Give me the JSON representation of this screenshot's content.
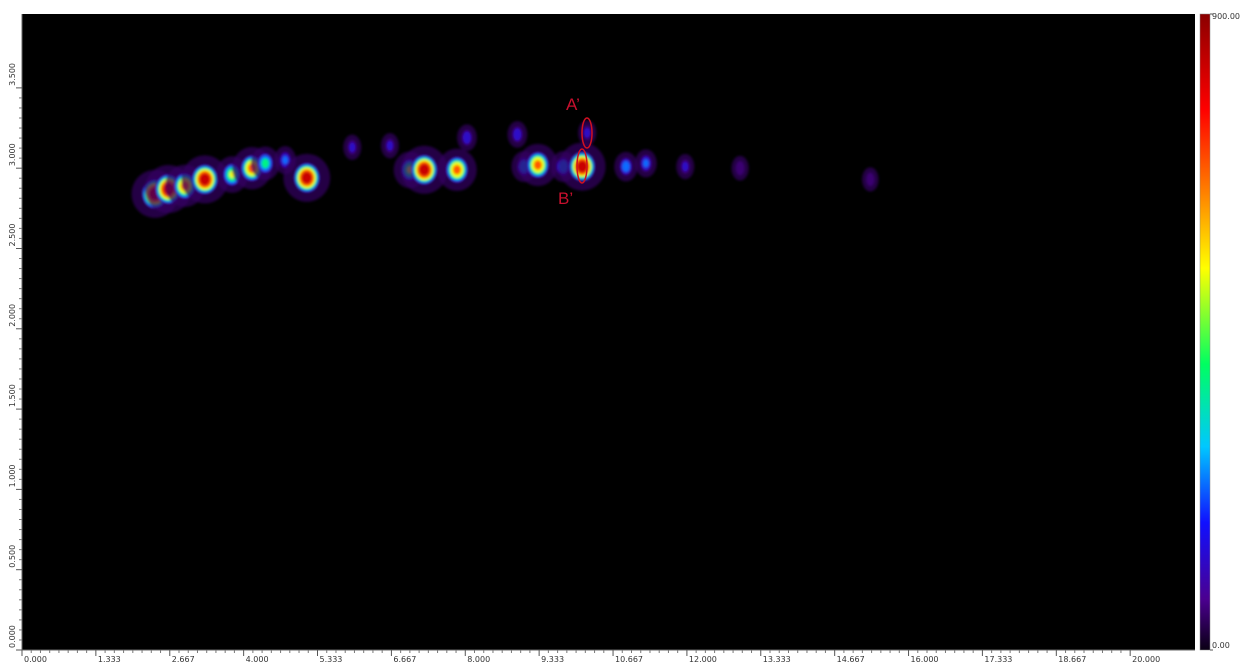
{
  "chart_data": {
    "type": "contour",
    "xlim": [
      0,
      21.17
    ],
    "ylim": [
      0,
      3.96
    ],
    "xticks": [
      {
        "value": 0,
        "label": "0.000"
      },
      1.333,
      2.667,
      {
        "value": 4,
        "label": "4.000"
      },
      5.333,
      6.667,
      {
        "value": 8,
        "label": "8.000"
      },
      9.333,
      10.667,
      {
        "value": 12,
        "label": "12.000"
      },
      13.333,
      14.667,
      {
        "value": 16,
        "label": "16.000"
      },
      17.333,
      18.667,
      {
        "value": 20,
        "label": "20.000"
      }
    ],
    "yticks": [
      {
        "value": 0,
        "label": "0.000"
      },
      {
        "value": 0.5,
        "label": "0.500"
      },
      {
        "value": 1,
        "label": "1.000"
      },
      {
        "value": 1.5,
        "label": "1.500"
      },
      {
        "value": 2,
        "label": "2.000"
      },
      {
        "value": 2.5,
        "label": "2.500"
      },
      {
        "value": 3,
        "label": "3.000"
      },
      {
        "value": 3.5,
        "label": "3.500"
      }
    ],
    "clim": [
      0,
      900
    ],
    "cticks": [
      {
        "value": 0,
        "label": "0.00"
      },
      {
        "value": 900,
        "label": "900.00"
      }
    ],
    "x": [
      2.4,
      2.64,
      2.94,
      3.3,
      3.79,
      4.15,
      4.39,
      4.75,
      5.14,
      5.96,
      6.64,
      7.0,
      7.26,
      7.85,
      8.03,
      8.94,
      9.06,
      9.31,
      9.77,
      10.11,
      10.2,
      10.9,
      11.26,
      11.97,
      12.96,
      15.31
    ],
    "y": [
      2.84,
      2.87,
      2.89,
      2.93,
      2.96,
      3.0,
      3.03,
      3.05,
      2.94,
      3.13,
      3.14,
      2.99,
      2.99,
      2.99,
      3.19,
      3.21,
      3.01,
      3.02,
      3.01,
      3.01,
      3.22,
      3.01,
      3.03,
      3.01,
      3.0,
      2.93
    ],
    "values": [
      900,
      900,
      700,
      900,
      500,
      700,
      400,
      200,
      900,
      100,
      100,
      500,
      900,
      700,
      150,
      150,
      300,
      700,
      300,
      900,
      100,
      250,
      200,
      100,
      80,
      60
    ],
    "annotations": [
      "A’",
      "B’"
    ]
  }
}
